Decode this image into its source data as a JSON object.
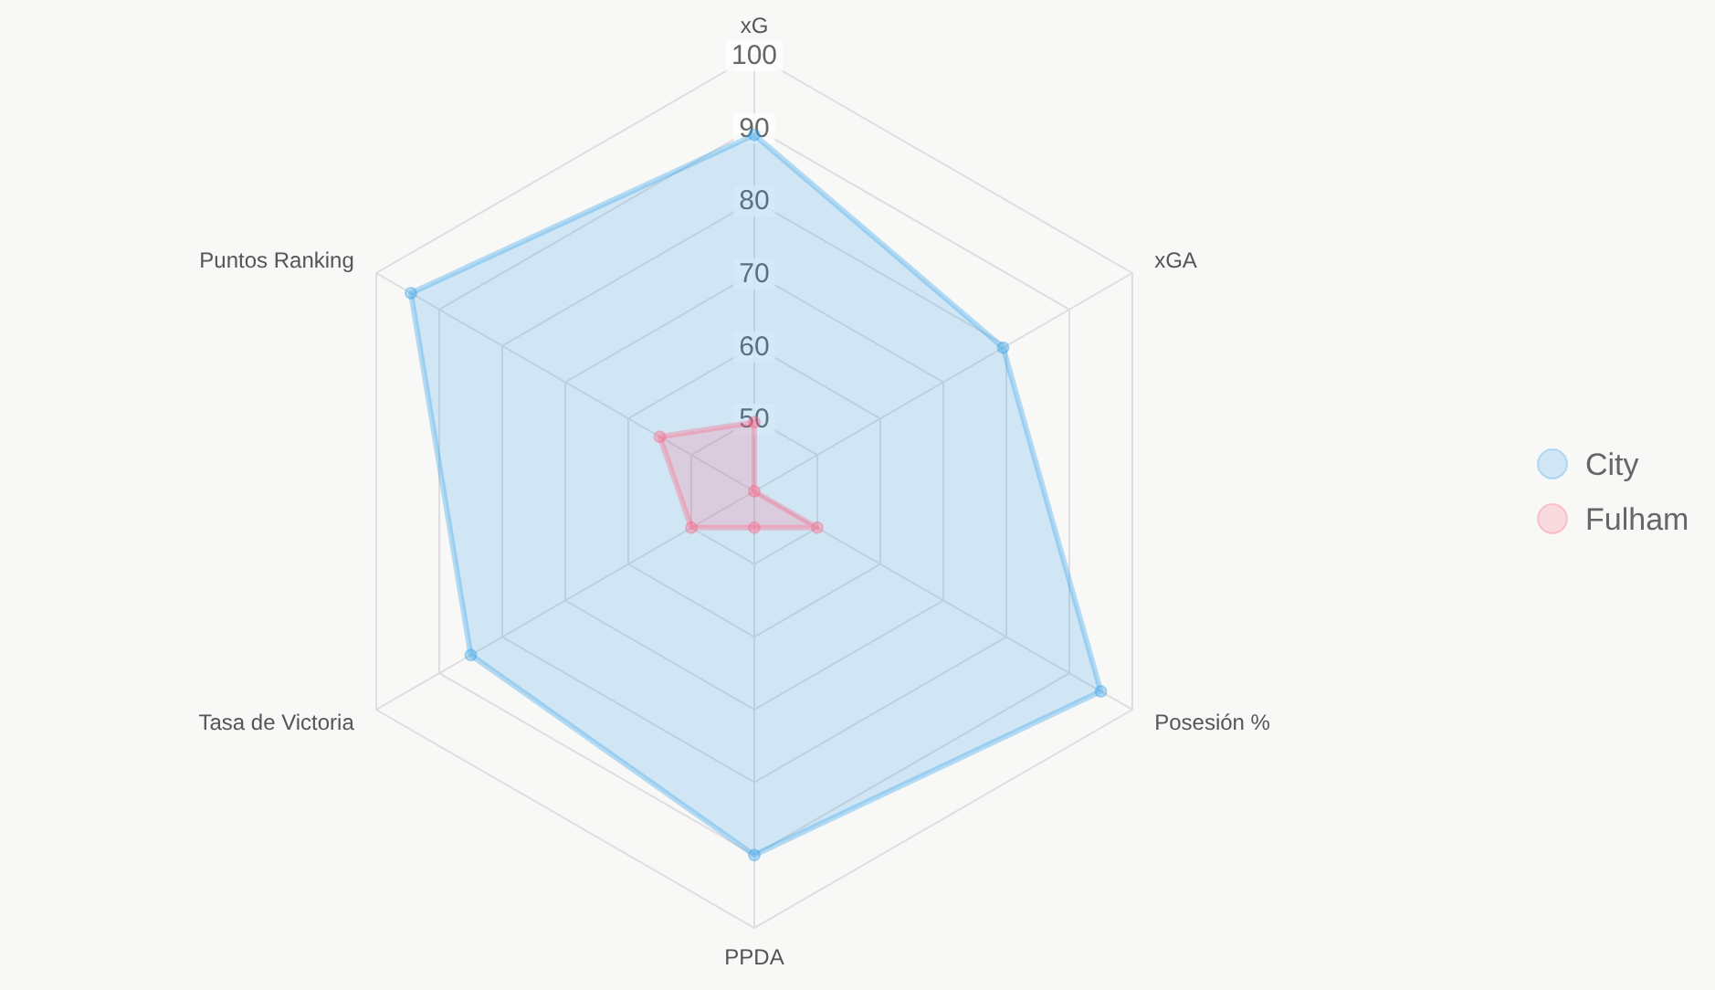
{
  "chart_data": {
    "type": "radar",
    "categories": [
      "xG",
      "xGA",
      "Posesión %",
      "PPDA",
      "Tasa de Victoria",
      "Puntos Ranking"
    ],
    "series": [
      {
        "name": "City",
        "color": "#36a2eb",
        "values": [
          89,
          79.5,
          95,
          90,
          85,
          94.5
        ]
      },
      {
        "name": "Fulham",
        "color": "#ff6384",
        "values": [
          49.5,
          40,
          50,
          45,
          50,
          55
        ]
      }
    ],
    "ylim": [
      40,
      100
    ],
    "yticks": [
      50,
      60,
      70,
      80,
      90,
      100
    ],
    "grid": true,
    "legend": "right",
    "marker": "circle"
  }
}
